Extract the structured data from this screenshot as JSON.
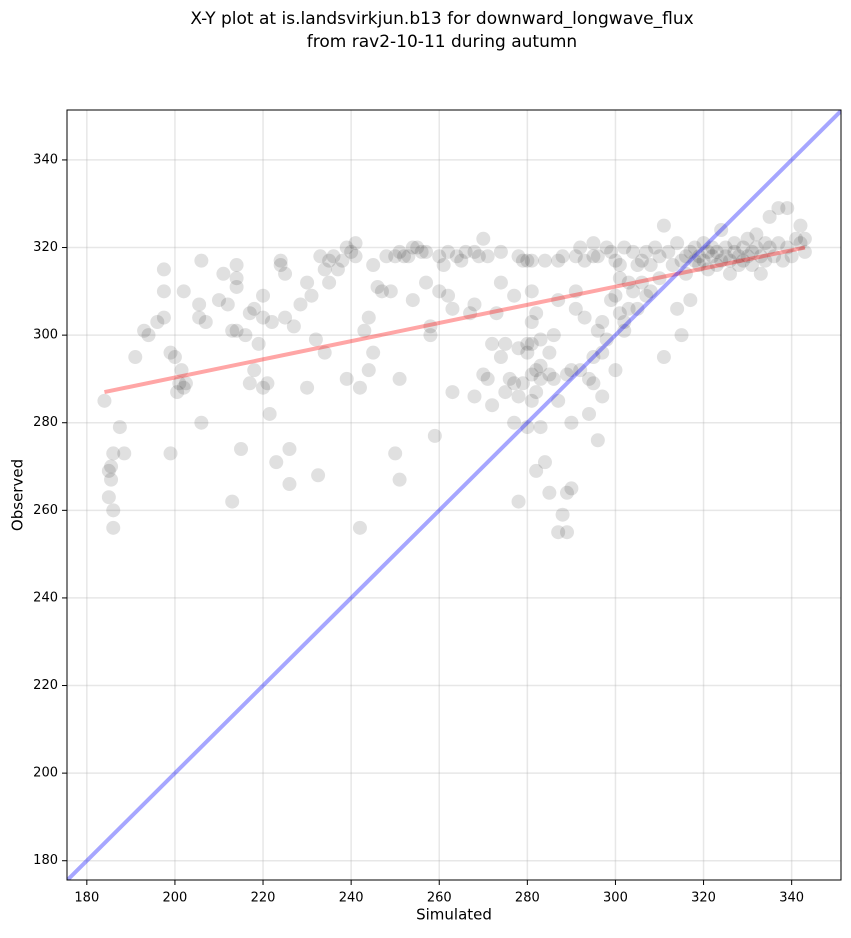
{
  "chart_data": {
    "type": "scatter",
    "title": [
      "X-Y plot at is.landsvirkjun.b13 for downward_longwave_flux",
      "from rav2-10-11 during autumn"
    ],
    "x_label": "Simulated",
    "y_label": "Observed",
    "xlim": [
      175.5,
      351.2
    ],
    "ylim": [
      175.6,
      351.4
    ],
    "xticks": [
      180,
      200,
      220,
      240,
      260,
      280,
      300,
      320,
      340
    ],
    "yticks": [
      180,
      200,
      220,
      240,
      260,
      280,
      300,
      320,
      340
    ],
    "grid": true,
    "color": "#000000",
    "x": [
      184,
      185,
      185,
      185.5,
      185.5,
      186,
      186,
      186,
      187.5,
      188.5,
      191,
      193,
      194,
      196,
      197.5,
      197.5,
      197.5,
      199,
      199,
      200,
      200.5,
      201,
      201.5,
      202,
      202,
      202.5,
      205.5,
      205.5,
      206,
      206,
      207,
      210,
      211,
      212,
      213,
      213,
      214,
      214,
      214,
      214,
      215,
      216,
      217,
      217,
      218,
      218,
      219,
      220,
      220,
      220,
      221,
      221.5,
      222,
      223,
      224,
      224,
      225,
      225,
      226,
      226,
      227,
      228.5,
      230,
      230,
      231,
      232,
      232.5,
      233,
      234,
      234,
      235,
      235,
      236,
      237,
      238,
      239,
      239,
      240,
      241,
      241,
      242,
      242,
      243,
      244,
      244,
      245,
      245,
      246,
      247,
      248,
      249,
      250,
      250,
      251,
      251,
      251,
      252,
      253,
      254,
      254,
      255,
      256,
      257,
      257,
      258,
      258,
      259,
      260,
      260,
      261,
      262,
      262,
      263,
      263,
      264,
      265,
      266,
      267,
      268,
      268,
      268,
      269,
      270,
      270,
      271,
      271,
      272,
      272,
      273,
      274,
      274,
      274,
      275,
      275,
      276,
      277,
      277,
      277,
      278,
      278,
      278,
      278,
      279,
      279,
      280,
      280,
      280,
      280,
      281,
      281,
      281,
      281,
      281,
      281,
      282,
      282,
      282,
      282,
      283,
      283,
      283,
      283,
      284,
      284,
      285,
      285,
      285,
      286,
      286,
      287,
      287,
      287,
      287,
      288,
      288,
      289,
      289,
      289,
      290,
      290,
      290,
      291,
      291,
      291,
      292,
      292,
      293,
      293,
      294,
      294,
      295,
      295,
      295,
      295,
      296,
      296,
      296,
      297,
      297,
      297,
      298,
      298,
      299,
      299,
      300,
      300,
      300,
      301,
      301,
      301,
      302,
      302,
      302,
      303,
      303,
      304,
      304,
      305,
      305,
      306,
      306,
      307,
      307,
      308,
      308,
      309,
      310,
      310,
      311,
      311,
      312,
      313,
      314,
      314,
      315,
      315,
      316,
      316,
      317,
      317,
      318,
      318,
      319,
      319,
      320,
      320,
      321,
      321,
      322,
      322,
      323,
      323,
      324,
      324,
      325,
      325,
      326,
      326,
      327,
      327,
      328,
      328,
      329,
      329,
      330,
      330,
      331,
      331,
      332,
      332,
      333,
      333,
      334,
      334,
      335,
      335,
      336,
      337,
      337,
      338,
      339,
      339,
      340,
      341,
      342,
      342,
      343,
      343
    ],
    "values": [
      285,
      263,
      269,
      270,
      267,
      273,
      260,
      256,
      279,
      273,
      295,
      301,
      300,
      303,
      315,
      310,
      304,
      296,
      273,
      295,
      287,
      289,
      292,
      288,
      310,
      289,
      307,
      304,
      317,
      280,
      303,
      308,
      314,
      307,
      301,
      262,
      316,
      313,
      311,
      301,
      274,
      300,
      289,
      305,
      292,
      306,
      298,
      309,
      304,
      288,
      289,
      282,
      303,
      271,
      316,
      317,
      314,
      304,
      266,
      274,
      302,
      307,
      312,
      288,
      309,
      299,
      268,
      318,
      315,
      296,
      317,
      312,
      318,
      315,
      317,
      320,
      290,
      319,
      321,
      318,
      288,
      256,
      301,
      304,
      292,
      316,
      296,
      311,
      310,
      318,
      310,
      318,
      273,
      319,
      290,
      267,
      318,
      318,
      320,
      308,
      320,
      319,
      319,
      312,
      302,
      300,
      277,
      318,
      310,
      316,
      319,
      309,
      306,
      287,
      318,
      317,
      319,
      305,
      319,
      307,
      286,
      318,
      322,
      291,
      318,
      290,
      298,
      284,
      305,
      319,
      312,
      295,
      298,
      287,
      290,
      289,
      280,
      309,
      318,
      297,
      286,
      262,
      317,
      289,
      317,
      298,
      279,
      296,
      317,
      310,
      303,
      298,
      291,
      285,
      305,
      292,
      287,
      269,
      299,
      293,
      290,
      279,
      317,
      271,
      296,
      291,
      264,
      300,
      290,
      317,
      308,
      285,
      255,
      259,
      318,
      291,
      264,
      255,
      292,
      280,
      265,
      318,
      310,
      306,
      320,
      292,
      317,
      304,
      290,
      282,
      321,
      318,
      295,
      289,
      318,
      301,
      276,
      303,
      296,
      286,
      320,
      299,
      319,
      308,
      317,
      309,
      292,
      316,
      313,
      305,
      320,
      301,
      303,
      312,
      306,
      319,
      310,
      316,
      306,
      317,
      312,
      319,
      309,
      316,
      310,
      320,
      313,
      318,
      325,
      295,
      319,
      316,
      321,
      306,
      317,
      300,
      314,
      318,
      319,
      308,
      317,
      320,
      318,
      316,
      321,
      317,
      319,
      315,
      318,
      320,
      316,
      319,
      324,
      317,
      318,
      320,
      317,
      314,
      319,
      321,
      318,
      316,
      320,
      317,
      318,
      322,
      316,
      319,
      323,
      320,
      318,
      314,
      321,
      317,
      327,
      320,
      318,
      329,
      321,
      317,
      329,
      320,
      318,
      322,
      325,
      321,
      322,
      319
    ],
    "fit_line": {
      "color": "#ff0000",
      "x": [
        184,
        343
      ],
      "values": [
        287,
        320
      ]
    },
    "identity_line": {
      "color": "#0000ff"
    }
  }
}
